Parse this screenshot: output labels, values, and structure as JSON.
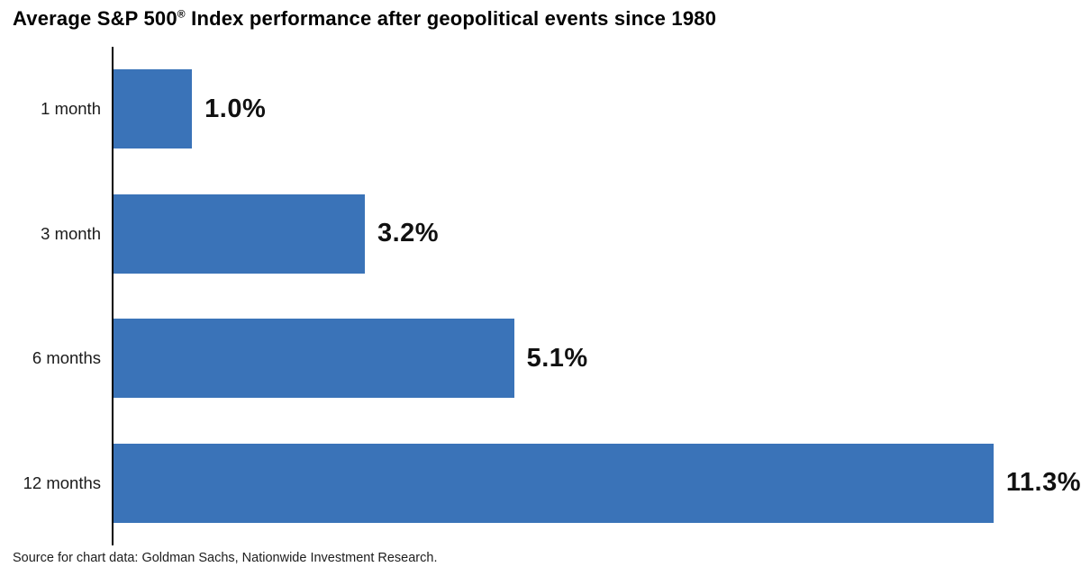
{
  "page": {
    "title_prefix": "Average S&P 500",
    "title_reg_mark": "®",
    "title_suffix": " Index performance after geopolitical events since 1980",
    "source_note": "Source for chart data: Goldman Sachs, Nationwide Investment Research."
  },
  "chart_data": {
    "type": "bar",
    "orientation": "horizontal",
    "title": "Average S&P 500® Index performance after geopolitical events since 1980",
    "categories": [
      "1 month",
      "3 month",
      "6 months",
      "12 months"
    ],
    "values": [
      1.0,
      3.2,
      5.1,
      11.3
    ],
    "value_labels": [
      "1.0%",
      "3.2%",
      "5.1%",
      "11.3%"
    ],
    "unit": "%",
    "xlabel": "",
    "ylabel": "",
    "xlim": [
      0,
      12.32
    ],
    "grid": false,
    "legend": "none",
    "bar_color": "#3A73B8",
    "axis_color": "#000000",
    "source": "Source for chart data: Goldman Sachs, Nationwide Investment Research."
  }
}
